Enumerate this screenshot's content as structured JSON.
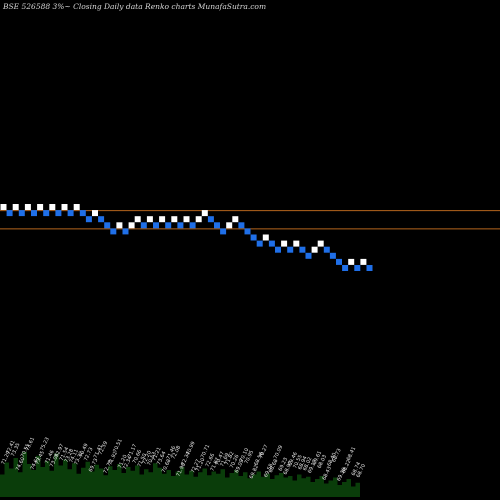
{
  "chart_data": {
    "type": "renko",
    "title": "BSE 526588  3%~  Closing Daily data  Renko  charts MunafaSutra.com",
    "colors": {
      "background": "#000000",
      "up_brick": "#ffffff",
      "down_brick": "#1f6fe8",
      "ref_line": "#b5651d",
      "volume": "#0a3d0a"
    },
    "bricks": [
      {
        "level": 10,
        "dir": "up"
      },
      {
        "level": 9,
        "dir": "down"
      },
      {
        "level": 10,
        "dir": "up"
      },
      {
        "level": 9,
        "dir": "down"
      },
      {
        "level": 10,
        "dir": "up"
      },
      {
        "level": 9,
        "dir": "down"
      },
      {
        "level": 10,
        "dir": "up"
      },
      {
        "level": 9,
        "dir": "down"
      },
      {
        "level": 10,
        "dir": "up"
      },
      {
        "level": 9,
        "dir": "down"
      },
      {
        "level": 10,
        "dir": "up"
      },
      {
        "level": 9,
        "dir": "down"
      },
      {
        "level": 10,
        "dir": "up"
      },
      {
        "level": 9,
        "dir": "down"
      },
      {
        "level": 8,
        "dir": "down"
      },
      {
        "level": 9,
        "dir": "up"
      },
      {
        "level": 8,
        "dir": "down"
      },
      {
        "level": 7,
        "dir": "down"
      },
      {
        "level": 6,
        "dir": "down"
      },
      {
        "level": 7,
        "dir": "up"
      },
      {
        "level": 6,
        "dir": "down"
      },
      {
        "level": 7,
        "dir": "up"
      },
      {
        "level": 8,
        "dir": "up"
      },
      {
        "level": 7,
        "dir": "down"
      },
      {
        "level": 8,
        "dir": "up"
      },
      {
        "level": 7,
        "dir": "down"
      },
      {
        "level": 8,
        "dir": "up"
      },
      {
        "level": 7,
        "dir": "down"
      },
      {
        "level": 8,
        "dir": "up"
      },
      {
        "level": 7,
        "dir": "down"
      },
      {
        "level": 8,
        "dir": "up"
      },
      {
        "level": 7,
        "dir": "down"
      },
      {
        "level": 8,
        "dir": "up"
      },
      {
        "level": 9,
        "dir": "up"
      },
      {
        "level": 8,
        "dir": "down"
      },
      {
        "level": 7,
        "dir": "down"
      },
      {
        "level": 6,
        "dir": "down"
      },
      {
        "level": 7,
        "dir": "up"
      },
      {
        "level": 8,
        "dir": "up"
      },
      {
        "level": 7,
        "dir": "down"
      },
      {
        "level": 6,
        "dir": "down"
      },
      {
        "level": 5,
        "dir": "down"
      },
      {
        "level": 4,
        "dir": "down"
      },
      {
        "level": 5,
        "dir": "up"
      },
      {
        "level": 4,
        "dir": "down"
      },
      {
        "level": 3,
        "dir": "down"
      },
      {
        "level": 4,
        "dir": "up"
      },
      {
        "level": 3,
        "dir": "down"
      },
      {
        "level": 4,
        "dir": "up"
      },
      {
        "level": 3,
        "dir": "down"
      },
      {
        "level": 2,
        "dir": "down"
      },
      {
        "level": 3,
        "dir": "up"
      },
      {
        "level": 4,
        "dir": "up"
      },
      {
        "level": 3,
        "dir": "down"
      },
      {
        "level": 2,
        "dir": "down"
      },
      {
        "level": 1,
        "dir": "down"
      },
      {
        "level": 0,
        "dir": "down"
      },
      {
        "level": 1,
        "dir": "up"
      },
      {
        "level": 0,
        "dir": "down"
      },
      {
        "level": 1,
        "dir": "up"
      },
      {
        "level": 0,
        "dir": "down"
      }
    ],
    "ref_lines": [
      9,
      6
    ],
    "volume_bars": [
      30,
      46,
      38,
      52,
      33,
      60,
      44,
      36,
      55,
      40,
      48,
      35,
      58,
      42,
      50,
      37,
      45,
      31,
      39,
      47,
      34,
      43,
      38,
      29,
      41,
      36,
      44,
      32,
      40,
      35,
      42,
      30,
      37,
      33,
      45,
      39,
      31,
      36,
      28,
      34,
      40,
      30,
      35,
      27,
      33,
      38,
      29,
      34,
      31,
      37,
      26,
      32,
      36,
      28,
      33,
      25,
      30,
      34,
      27,
      31,
      24,
      29,
      32,
      26,
      28,
      22,
      30,
      25,
      27,
      20,
      24,
      28,
      18,
      22,
      26,
      16,
      20,
      24,
      14,
      19
    ],
    "volume_labels": [
      "71.29",
      "72.41",
      "73.35",
      "74.60",
      "70.51",
      "73.61",
      "74.61",
      "73.45",
      "75.23",
      "71.46",
      "73.06",
      "72.97",
      "71.54",
      "73.28",
      "74.11",
      "73.32",
      "70.49",
      "72.73",
      "69.73",
      "71.41",
      "72.59",
      "72.73",
      "71.92",
      "70.51",
      "71.20",
      "72.34",
      "71.17",
      "70.66",
      "71.50",
      "72.20",
      "70.53",
      "71.21",
      "73.64",
      "70.68",
      "71.46",
      "72.08",
      "71.98",
      "72.34",
      "70.99",
      "72.27",
      "71.20",
      "70.71",
      "72.66",
      "71.87",
      "70.47",
      "71.69",
      "71.82",
      "70.26",
      "69.09",
      "70.10",
      "70.95",
      "69.82",
      "68.56",
      "70.27",
      "69.58",
      "68.68",
      "70.09",
      "69.23",
      "68.97",
      "69.46",
      "70.55",
      "68.94",
      "68.02",
      "69.17",
      "69.61",
      "68.03",
      "68.43",
      "68.40",
      "68.73",
      "69.36",
      "68.22",
      "68.41",
      "68.74",
      "68.70"
    ]
  }
}
